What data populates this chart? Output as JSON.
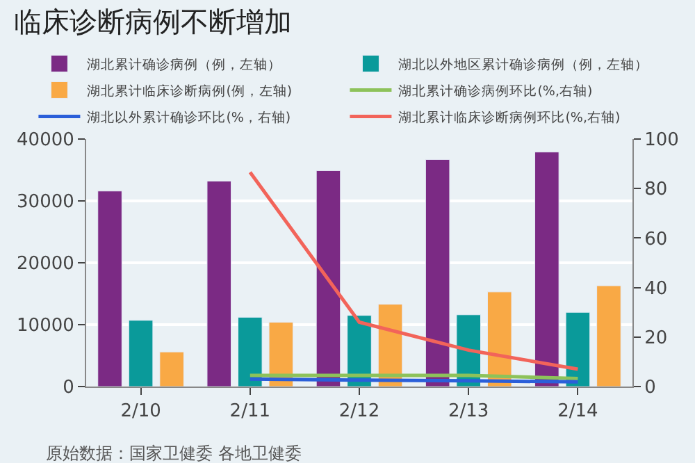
{
  "chart_data": {
    "type": "bar",
    "title": "临床诊断病例不断增加",
    "categories": [
      "2/10",
      "2/11",
      "2/12",
      "2/13",
      "2/14"
    ],
    "series": [
      {
        "name": "湖北累计确诊病例（例，左轴）",
        "color": "#7b2a84",
        "values": [
          31600,
          33200,
          34900,
          36700,
          37900
        ]
      },
      {
        "name": "湖北以外地区累计确诊病例（例，左轴）",
        "color": "#0a9a9a",
        "values": [
          10700,
          11200,
          11500,
          11600,
          12000
        ]
      },
      {
        "name": "湖北累计临床诊断病例(例，左轴)",
        "color": "#f9a945",
        "values": [
          5600,
          10400,
          13300,
          15300,
          16300
        ]
      },
      {
        "name": "湖北累计确诊病例环比(%,右轴)",
        "color": "#8dc25a",
        "type": "line",
        "axis": "y2",
        "values": [
          null,
          4.5,
          4.5,
          4.5,
          3.2
        ]
      },
      {
        "name": "湖北以外累计确诊环比(%，右轴)",
        "color": "#2b5fd9",
        "type": "line",
        "axis": "y2",
        "values": [
          null,
          3,
          2.6,
          2.3,
          1.9
        ]
      },
      {
        "name": "湖北累计临床诊断病例环比(%,右轴)",
        "color": "#f2645a",
        "type": "line",
        "axis": "y2",
        "values": [
          null,
          86.6,
          26,
          14.7,
          7
        ]
      }
    ],
    "ylim": [
      0,
      40000
    ],
    "yticks": [
      0,
      10000,
      20000,
      30000,
      40000
    ],
    "y2lim": [
      0,
      100
    ],
    "y2ticks": [
      0,
      20,
      40,
      60,
      80,
      100
    ],
    "grid": "y",
    "legend": "top",
    "annotations": [
      "原始数据：国家卫健委 各地卫健委"
    ]
  }
}
